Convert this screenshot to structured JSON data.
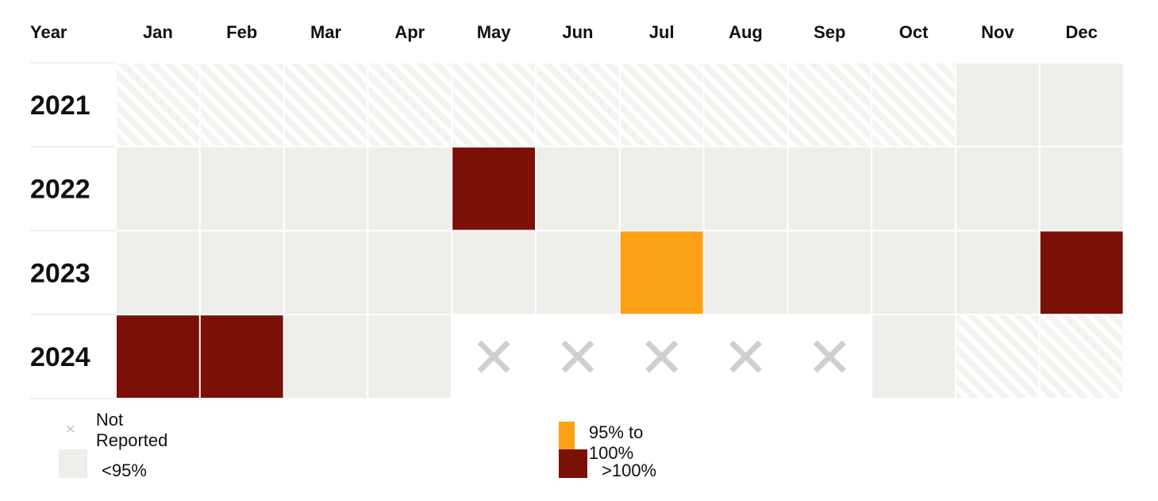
{
  "chart_data": {
    "type": "heatmap",
    "row_header": "Year",
    "columns": [
      "Jan",
      "Feb",
      "Mar",
      "Apr",
      "May",
      "Jun",
      "Jul",
      "Aug",
      "Sep",
      "Oct",
      "Nov",
      "Dec"
    ],
    "rows": [
      "2021",
      "2022",
      "2023",
      "2024"
    ],
    "cells": [
      [
        "na",
        "na",
        "na",
        "na",
        "na",
        "na",
        "na",
        "na",
        "na",
        "na",
        "lt95",
        "lt95"
      ],
      [
        "lt95",
        "lt95",
        "lt95",
        "lt95",
        "gt100",
        "lt95",
        "lt95",
        "lt95",
        "lt95",
        "lt95",
        "lt95",
        "lt95"
      ],
      [
        "lt95",
        "lt95",
        "lt95",
        "lt95",
        "lt95",
        "lt95",
        "95to100",
        "lt95",
        "lt95",
        "lt95",
        "lt95",
        "gt100"
      ],
      [
        "gt100",
        "gt100",
        "lt95",
        "lt95",
        "nr",
        "nr",
        "nr",
        "nr",
        "nr",
        "lt95",
        "na",
        "na"
      ]
    ],
    "categories": {
      "lt95": {
        "label": "<95%",
        "color": "#efeeea"
      },
      "95to100": {
        "label": "95% to 100%",
        "color": "#fca016"
      },
      "gt100": {
        "label": ">100%",
        "color": "#7a1008"
      },
      "nr": {
        "label": "Not Reported",
        "color": "#ffffff",
        "marker": "x-icon"
      },
      "na": {
        "label": "",
        "color": "#f5f4f1",
        "pattern": "diagonal-hatch"
      }
    }
  },
  "legend": {
    "not_reported": "Not Reported",
    "lt95": "<95%",
    "range_95_100": "95% to 100%",
    "gt100": ">100%"
  }
}
